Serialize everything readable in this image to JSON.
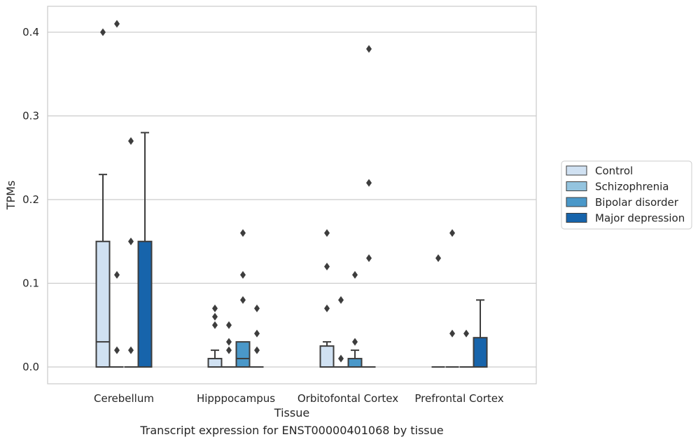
{
  "caption": "Transcript expression for ENST00000401068 by tissue",
  "chart_data": {
    "type": "box",
    "xlabel": "Tissue",
    "ylabel": "TPMs",
    "ylim": [
      -0.02,
      0.43
    ],
    "yticks": [
      0.0,
      0.1,
      0.2,
      0.3,
      0.4
    ],
    "ytick_labels": [
      "0.0",
      "0.1",
      "0.2",
      "0.3",
      "0.4"
    ],
    "grid": "horizontal",
    "legend_position": "right",
    "categories": [
      "Cerebellum",
      "Hipppocampus",
      "Orbitofontal Cortex",
      "Prefrontal Cortex"
    ],
    "series": [
      {
        "name": "Control",
        "color": "#d0e1f2",
        "boxes": [
          {
            "q1": 0,
            "median": 0.03,
            "q3": 0.15,
            "whisker_low": 0,
            "whisker_high": 0.23,
            "outliers": [
              0.4
            ]
          },
          {
            "q1": 0,
            "median": 0,
            "q3": 0.01,
            "whisker_low": 0,
            "whisker_high": 0.02,
            "outliers": [
              0.05,
              0.06,
              0.07
            ]
          },
          {
            "q1": 0,
            "median": 0,
            "q3": 0.025,
            "whisker_low": 0,
            "whisker_high": 0.03,
            "outliers": [
              0.07,
              0.12,
              0.16
            ]
          },
          {
            "q1": 0,
            "median": 0,
            "q3": 0,
            "whisker_low": 0,
            "whisker_high": 0,
            "outliers": [
              0.13
            ]
          }
        ]
      },
      {
        "name": "Schizophrenia",
        "color": "#94c4df",
        "boxes": [
          {
            "q1": 0,
            "median": 0,
            "q3": 0,
            "whisker_low": 0,
            "whisker_high": 0,
            "outliers": [
              0.02,
              0.11,
              0.41
            ]
          },
          {
            "q1": 0,
            "median": 0,
            "q3": 0,
            "whisker_low": 0,
            "whisker_high": 0,
            "outliers": [
              0.02,
              0.03,
              0.05
            ]
          },
          {
            "q1": 0,
            "median": 0,
            "q3": 0,
            "whisker_low": 0,
            "whisker_high": 0,
            "outliers": [
              0.01,
              0.08
            ]
          },
          {
            "q1": 0,
            "median": 0,
            "q3": 0,
            "whisker_low": 0,
            "whisker_high": 0,
            "outliers": [
              0.04,
              0.16
            ]
          }
        ]
      },
      {
        "name": "Bipolar disorder",
        "color": "#4a98c9",
        "boxes": [
          {
            "q1": 0,
            "median": 0,
            "q3": 0,
            "whisker_low": 0,
            "whisker_high": 0,
            "outliers": [
              0.02,
              0.15,
              0.27
            ]
          },
          {
            "q1": 0,
            "median": 0.01,
            "q3": 0.03,
            "whisker_low": 0,
            "whisker_high": 0.03,
            "outliers": [
              0.08,
              0.11,
              0.16
            ]
          },
          {
            "q1": 0,
            "median": 0,
            "q3": 0.01,
            "whisker_low": 0,
            "whisker_high": 0.02,
            "outliers": [
              0.03,
              0.11
            ]
          },
          {
            "q1": 0,
            "median": 0,
            "q3": 0,
            "whisker_low": 0,
            "whisker_high": 0,
            "outliers": [
              0.04
            ]
          }
        ]
      },
      {
        "name": "Major depression",
        "color": "#1764ab",
        "boxes": [
          {
            "q1": 0,
            "median": 0,
            "q3": 0.15,
            "whisker_low": 0,
            "whisker_high": 0.28,
            "outliers": []
          },
          {
            "q1": 0,
            "median": 0,
            "q3": 0,
            "whisker_low": 0,
            "whisker_high": 0,
            "outliers": [
              0.02,
              0.04,
              0.07
            ]
          },
          {
            "q1": 0,
            "median": 0,
            "q3": 0,
            "whisker_low": 0,
            "whisker_high": 0,
            "outliers": [
              0.13,
              0.22,
              0.38
            ]
          },
          {
            "q1": 0,
            "median": 0,
            "q3": 0.035,
            "whisker_low": 0,
            "whisker_high": 0.08,
            "outliers": []
          }
        ]
      }
    ]
  }
}
